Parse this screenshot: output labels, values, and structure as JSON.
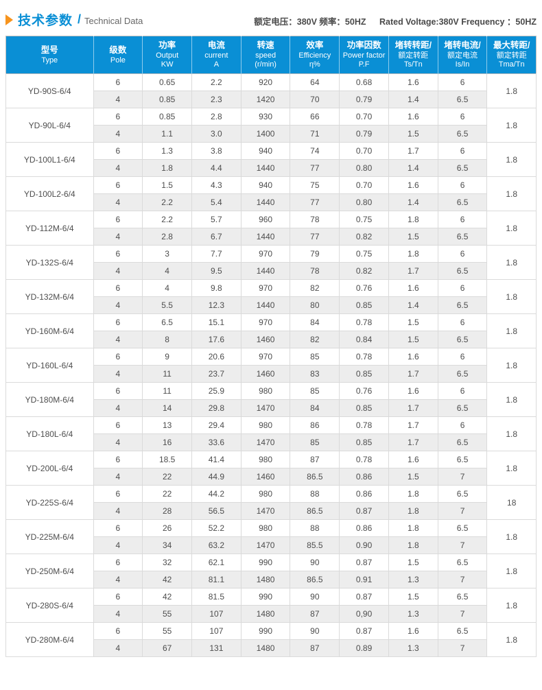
{
  "header": {
    "title_cn": "技术参数",
    "title_slash": "/",
    "title_en": "Technical Data",
    "spec_cn": "额定电压：380V  频率：50HZ",
    "spec_en": "Rated Voltage:380V   Frequency ：50HZ"
  },
  "colors": {
    "accent_blue": "#0a8fd5",
    "accent_orange": "#f7941d",
    "header_text": "#ffffff",
    "alt_row": "#ededed",
    "body_text": "#4d4d4d",
    "border": "#bfbfbf"
  },
  "table": {
    "columns": [
      {
        "id": "type",
        "lines": [
          "型号",
          "Type"
        ]
      },
      {
        "id": "pole",
        "lines": [
          "级数",
          "Pole"
        ]
      },
      {
        "id": "output",
        "lines": [
          "功率",
          "Output",
          "KW"
        ]
      },
      {
        "id": "current",
        "lines": [
          "电流",
          "current",
          "A"
        ]
      },
      {
        "id": "speed",
        "lines": [
          "转速",
          "speed",
          "(r/min)"
        ]
      },
      {
        "id": "efficiency",
        "lines": [
          "效率",
          "Efficiency",
          "η%"
        ]
      },
      {
        "id": "power-factor",
        "lines": [
          "功率因数",
          "Power factor",
          "P.F"
        ]
      },
      {
        "id": "ts-tn",
        "lines": [
          "堵转转距/",
          "额定转距",
          "Ts/Tn"
        ]
      },
      {
        "id": "is-in",
        "lines": [
          "堵转电流/",
          "额定电流",
          "Is/In"
        ]
      },
      {
        "id": "tma-tn",
        "lines": [
          "最大转距/",
          "额定转距",
          "Tma/Tn"
        ]
      }
    ],
    "rows": [
      {
        "model": "YD-90S-6/4",
        "sub_rows": [
          [
            "6",
            "0.65",
            "2.2",
            "920",
            "64",
            "0.68",
            "1.6",
            "6"
          ],
          [
            "4",
            "0.85",
            "2.3",
            "1420",
            "70",
            "0.79",
            "1.4",
            "6.5"
          ]
        ],
        "tma": "1.8"
      },
      {
        "model": "YD-90L-6/4",
        "sub_rows": [
          [
            "6",
            "0.85",
            "2.8",
            "930",
            "66",
            "0.70",
            "1.6",
            "6"
          ],
          [
            "4",
            "1.1",
            "3.0",
            "1400",
            "71",
            "0.79",
            "1.5",
            "6.5"
          ]
        ],
        "tma": "1.8"
      },
      {
        "model": "YD-100L1-6/4",
        "sub_rows": [
          [
            "6",
            "1.3",
            "3.8",
            "940",
            "74",
            "0.70",
            "1.7",
            "6"
          ],
          [
            "4",
            "1.8",
            "4.4",
            "1440",
            "77",
            "0.80",
            "1.4",
            "6.5"
          ]
        ],
        "tma": "1.8"
      },
      {
        "model": "YD-100L2-6/4",
        "sub_rows": [
          [
            "6",
            "1.5",
            "4.3",
            "940",
            "75",
            "0.70",
            "1.6",
            "6"
          ],
          [
            "4",
            "2.2",
            "5.4",
            "1440",
            "77",
            "0.80",
            "1.4",
            "6.5"
          ]
        ],
        "tma": "1.8"
      },
      {
        "model": "YD-112M-6/4",
        "sub_rows": [
          [
            "6",
            "2.2",
            "5.7",
            "960",
            "78",
            "0.75",
            "1.8",
            "6"
          ],
          [
            "4",
            "2.8",
            "6.7",
            "1440",
            "77",
            "0.82",
            "1.5",
            "6.5"
          ]
        ],
        "tma": "1.8"
      },
      {
        "model": "YD-132S-6/4",
        "sub_rows": [
          [
            "6",
            "3",
            "7.7",
            "970",
            "79",
            "0.75",
            "1.8",
            "6"
          ],
          [
            "4",
            "4",
            "9.5",
            "1440",
            "78",
            "0.82",
            "1.7",
            "6.5"
          ]
        ],
        "tma": "1.8"
      },
      {
        "model": "YD-132M-6/4",
        "sub_rows": [
          [
            "6",
            "4",
            "9.8",
            "970",
            "82",
            "0.76",
            "1.6",
            "6"
          ],
          [
            "4",
            "5.5",
            "12.3",
            "1440",
            "80",
            "0.85",
            "1.4",
            "6.5"
          ]
        ],
        "tma": "1.8"
      },
      {
        "model": "YD-160M-6/4",
        "sub_rows": [
          [
            "6",
            "6.5",
            "15.1",
            "970",
            "84",
            "0.78",
            "1.5",
            "6"
          ],
          [
            "4",
            "8",
            "17.6",
            "1460",
            "82",
            "0.84",
            "1.5",
            "6.5"
          ]
        ],
        "tma": "1.8"
      },
      {
        "model": "YD-160L-6/4",
        "sub_rows": [
          [
            "6",
            "9",
            "20.6",
            "970",
            "85",
            "0.78",
            "1.6",
            "6"
          ],
          [
            "4",
            "11",
            "23.7",
            "1460",
            "83",
            "0.85",
            "1.7",
            "6.5"
          ]
        ],
        "tma": "1.8"
      },
      {
        "model": "YD-180M-6/4",
        "sub_rows": [
          [
            "6",
            "11",
            "25.9",
            "980",
            "85",
            "0.76",
            "1.6",
            "6"
          ],
          [
            "4",
            "14",
            "29.8",
            "1470",
            "84",
            "0.85",
            "1.7",
            "6.5"
          ]
        ],
        "tma": "1.8"
      },
      {
        "model": "YD-180L-6/4",
        "sub_rows": [
          [
            "6",
            "13",
            "29.4",
            "980",
            "86",
            "0.78",
            "1.7",
            "6"
          ],
          [
            "4",
            "16",
            "33.6",
            "1470",
            "85",
            "0.85",
            "1.7",
            "6.5"
          ]
        ],
        "tma": "1.8"
      },
      {
        "model": "YD-200L-6/4",
        "sub_rows": [
          [
            "6",
            "18.5",
            "41.4",
            "980",
            "87",
            "0.78",
            "1.6",
            "6.5"
          ],
          [
            "4",
            "22",
            "44.9",
            "1460",
            "86.5",
            "0.86",
            "1.5",
            "7"
          ]
        ],
        "tma": "1.8"
      },
      {
        "model": "YD-225S-6/4",
        "sub_rows": [
          [
            "6",
            "22",
            "44.2",
            "980",
            "88",
            "0.86",
            "1.8",
            "6.5"
          ],
          [
            "4",
            "28",
            "56.5",
            "1470",
            "86.5",
            "0.87",
            "1.8",
            "7"
          ]
        ],
        "tma": "18"
      },
      {
        "model": "YD-225M-6/4",
        "sub_rows": [
          [
            "6",
            "26",
            "52.2",
            "980",
            "88",
            "0.86",
            "1.8",
            "6.5"
          ],
          [
            "4",
            "34",
            "63.2",
            "1470",
            "85.5",
            "0.90",
            "1.8",
            "7"
          ]
        ],
        "tma": "1.8"
      },
      {
        "model": "YD-250M-6/4",
        "sub_rows": [
          [
            "6",
            "32",
            "62.1",
            "990",
            "90",
            "0.87",
            "1.5",
            "6.5"
          ],
          [
            "4",
            "42",
            "81.1",
            "1480",
            "86.5",
            "0.91",
            "1.3",
            "7"
          ]
        ],
        "tma": "1.8"
      },
      {
        "model": "YD-280S-6/4",
        "sub_rows": [
          [
            "6",
            "42",
            "81.5",
            "990",
            "90",
            "0.87",
            "1.5",
            "6.5"
          ],
          [
            "4",
            "55",
            "107",
            "1480",
            "87",
            "0,90",
            "1.3",
            "7"
          ]
        ],
        "tma": "1.8"
      },
      {
        "model": "YD-280M-6/4",
        "sub_rows": [
          [
            "6",
            "55",
            "107",
            "990",
            "90",
            "0.87",
            "1.6",
            "6.5"
          ],
          [
            "4",
            "67",
            "131",
            "1480",
            "87",
            "0.89",
            "1.3",
            "7"
          ]
        ],
        "tma": "1.8"
      }
    ]
  }
}
